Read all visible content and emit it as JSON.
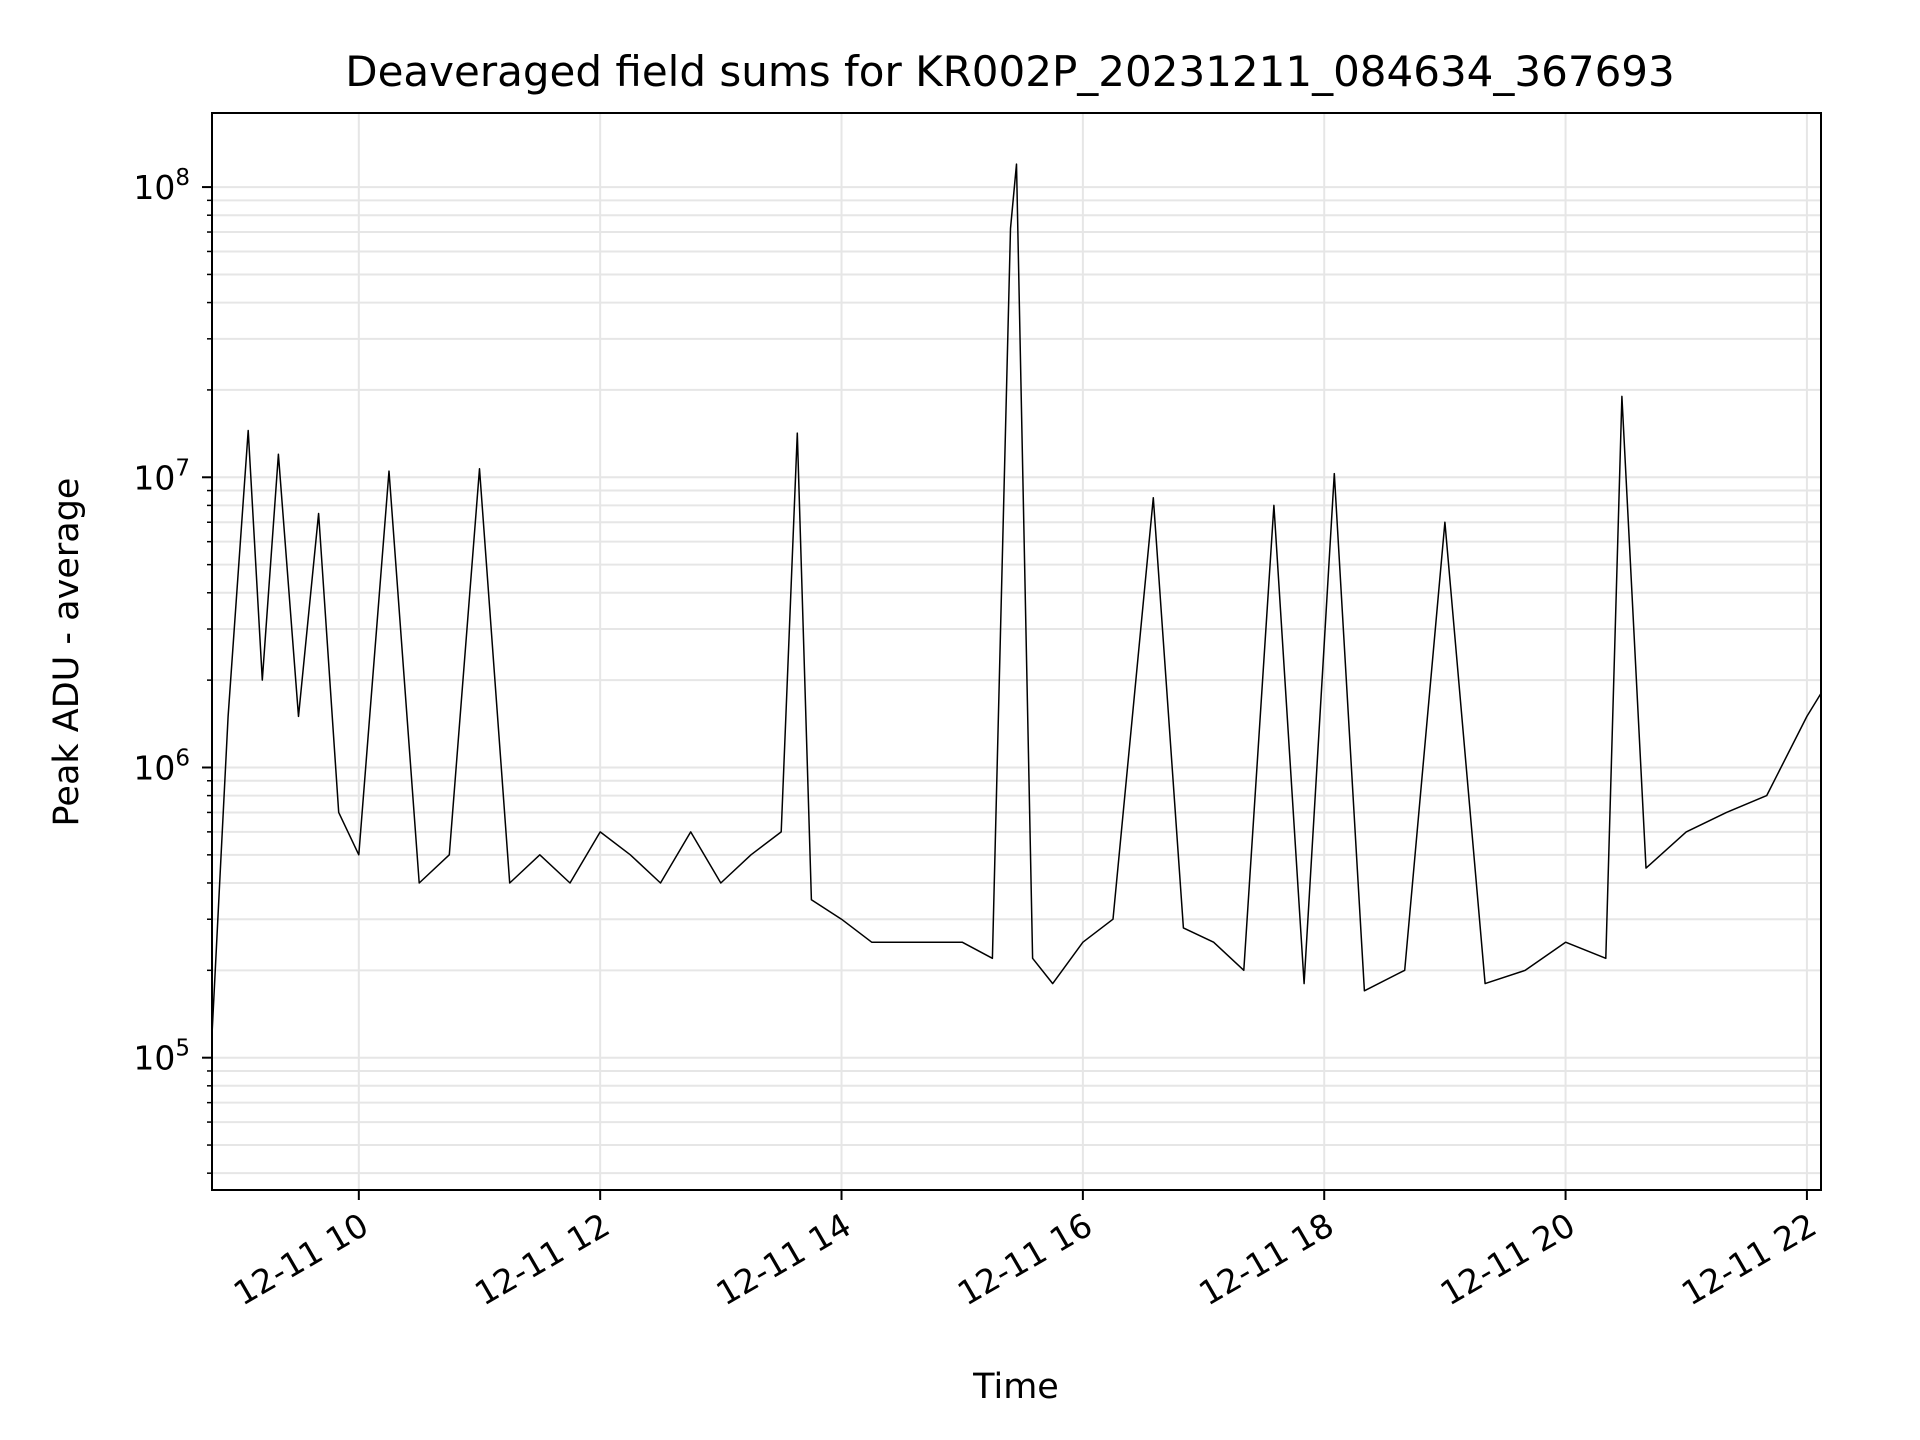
{
  "chart_data": {
    "type": "line",
    "title": "Deaveraged field sums for KR002P_20231211_084634_367693",
    "xlabel": "Time",
    "ylabel": "Peak ADU - average",
    "yscale": "log",
    "ylim": [
      35000,
      180000000
    ],
    "xlim": [
      "2023-12-11 08:47",
      "2023-12-11 22:07"
    ],
    "grid": true,
    "legend": "none",
    "line_color": "#000000",
    "grid_color": "#e6e6e6",
    "x_ticks": [
      {
        "value": "2023-12-11 10:00",
        "label": "12-11 10"
      },
      {
        "value": "2023-12-11 12:00",
        "label": "12-11 12"
      },
      {
        "value": "2023-12-11 14:00",
        "label": "12-11 14"
      },
      {
        "value": "2023-12-11 16:00",
        "label": "12-11 16"
      },
      {
        "value": "2023-12-11 18:00",
        "label": "12-11 18"
      },
      {
        "value": "2023-12-11 20:00",
        "label": "12-11 20"
      },
      {
        "value": "2023-12-11 22:00",
        "label": "12-11 22"
      }
    ],
    "y_ticks": [
      {
        "value": 100000,
        "base": "10",
        "exp": "5"
      },
      {
        "value": 1000000,
        "base": "10",
        "exp": "6"
      },
      {
        "value": 10000000,
        "base": "10",
        "exp": "7"
      },
      {
        "value": 100000000,
        "base": "10",
        "exp": "8"
      }
    ],
    "series": [
      {
        "x": [
          "2023-12-11 08:47",
          "2023-12-11 08:55",
          "2023-12-11 09:05",
          "2023-12-11 09:12",
          "2023-12-11 09:20",
          "2023-12-11 09:30",
          "2023-12-11 09:40",
          "2023-12-11 09:50",
          "2023-12-11 10:00",
          "2023-12-11 10:15",
          "2023-12-11 10:30",
          "2023-12-11 10:45",
          "2023-12-11 11:00",
          "2023-12-11 11:15",
          "2023-12-11 11:30",
          "2023-12-11 11:45",
          "2023-12-11 12:00",
          "2023-12-11 12:15",
          "2023-12-11 12:30",
          "2023-12-11 12:45",
          "2023-12-11 13:00",
          "2023-12-11 13:15",
          "2023-12-11 13:30",
          "2023-12-11 13:38",
          "2023-12-11 13:45",
          "2023-12-11 14:00",
          "2023-12-11 14:15",
          "2023-12-11 14:30",
          "2023-12-11 14:45",
          "2023-12-11 15:00",
          "2023-12-11 15:15",
          "2023-12-11 15:24",
          "2023-12-11 15:27",
          "2023-12-11 15:35",
          "2023-12-11 15:45",
          "2023-12-11 16:00",
          "2023-12-11 16:15",
          "2023-12-11 16:35",
          "2023-12-11 16:50",
          "2023-12-11 17:05",
          "2023-12-11 17:20",
          "2023-12-11 17:35",
          "2023-12-11 17:50",
          "2023-12-11 18:05",
          "2023-12-11 18:20",
          "2023-12-11 18:40",
          "2023-12-11 19:00",
          "2023-12-11 19:20",
          "2023-12-11 19:40",
          "2023-12-11 20:00",
          "2023-12-11 20:20",
          "2023-12-11 20:28",
          "2023-12-11 20:40",
          "2023-12-11 21:00",
          "2023-12-11 21:20",
          "2023-12-11 21:40",
          "2023-12-11 22:00",
          "2023-12-11 22:07"
        ],
        "values": [
          120000,
          1500000,
          14500000,
          2000000,
          12000000,
          1500000,
          7500000,
          700000,
          500000,
          10500000,
          400000,
          500000,
          10700000,
          400000,
          500000,
          400000,
          600000,
          500000,
          400000,
          600000,
          400000,
          500000,
          600000,
          14200000,
          350000,
          300000,
          250000,
          250000,
          250000,
          250000,
          220000,
          72000000,
          120000000,
          220000,
          180000,
          250000,
          300000,
          8500000,
          280000,
          250000,
          200000,
          8000000,
          180000,
          10300000,
          170000,
          200000,
          7000000,
          180000,
          200000,
          250000,
          220000,
          19000000,
          450000,
          600000,
          700000,
          800000,
          1500000,
          1800000
        ]
      }
    ]
  }
}
